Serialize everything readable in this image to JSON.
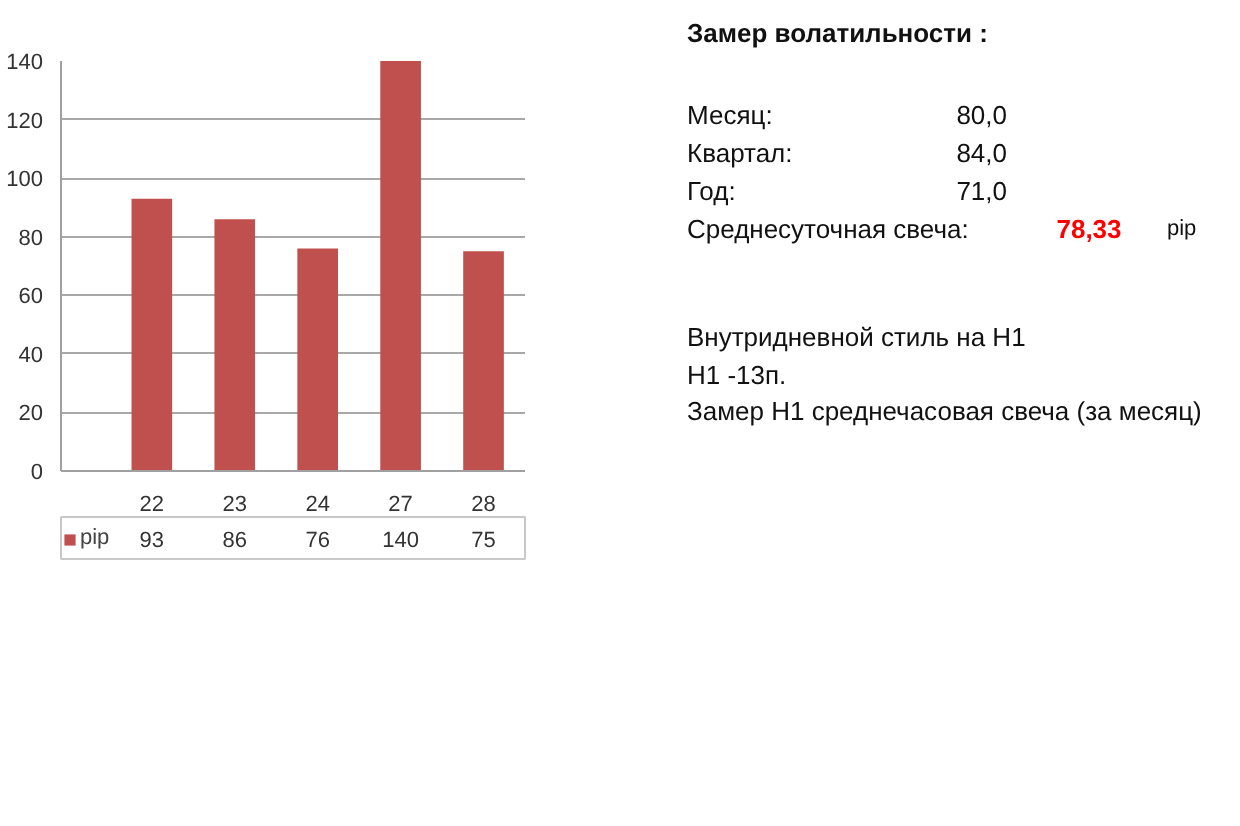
{
  "chart_data": [
    {
      "type": "bar",
      "categories": [
        "22",
        "23",
        "24",
        "27",
        "28"
      ],
      "series": [
        {
          "name": "pip",
          "color": "#c0504d",
          "values": [
            93,
            86,
            76,
            140,
            75
          ]
        }
      ],
      "ylim": [
        0,
        140
      ],
      "yticks": [
        0,
        20,
        40,
        60,
        80,
        100,
        120,
        140
      ],
      "grid": "y",
      "legend": "bottom left",
      "data_labels": true
    },
    {
      "type": "other",
      "title": "Замер волатильности :",
      "annotations": [
        "Месяц:",
        "80,0",
        "Квартал:",
        "84,0",
        "Год:",
        "71,0",
        "Среднесуточная свеча:",
        "78,33",
        "pip",
        "Внутридневной стиль на H1",
        "H1 -13п.",
        "Замер H1 среднечасовая свеча (за месяц)"
      ]
    }
  ]
}
